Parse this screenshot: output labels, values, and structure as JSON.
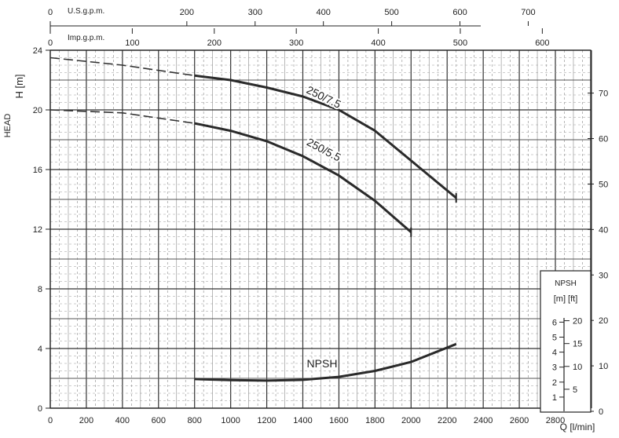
{
  "chart_data": {
    "type": "line",
    "title": "",
    "ylabel": "HEAD",
    "ylabel_unit": "H [m]",
    "xlabel": "Q [l/min]",
    "xlim": [
      0,
      3000
    ],
    "ylim": [
      0,
      24
    ],
    "grid": true,
    "x_ticks": [
      0,
      200,
      400,
      600,
      800,
      1000,
      1200,
      1400,
      1600,
      1800,
      2000,
      2200,
      2400,
      2600,
      2800
    ],
    "y_ticks": [
      0,
      4,
      8,
      12,
      16,
      20,
      24
    ],
    "right_axis": {
      "unit": "ft",
      "ticks": [
        0,
        10,
        20,
        30,
        40,
        50,
        60,
        70
      ]
    },
    "top_axes": [
      {
        "label": "U.S.g.p.m.",
        "ticks": [
          0,
          200,
          300,
          400,
          500,
          600,
          700
        ],
        "lpm_per_unit": 3.785
      },
      {
        "label": "Imp.g.p.m.",
        "ticks": [
          0,
          100,
          200,
          300,
          400,
          500,
          600
        ],
        "lpm_per_unit": 4.546
      }
    ],
    "series": [
      {
        "name": "250/7.5",
        "dashed": [
          [
            0,
            23.5
          ],
          [
            400,
            23.0
          ],
          [
            800,
            22.3
          ]
        ],
        "solid": [
          [
            800,
            22.3
          ],
          [
            1000,
            22.0
          ],
          [
            1200,
            21.5
          ],
          [
            1400,
            20.9
          ],
          [
            1600,
            20.0
          ],
          [
            1800,
            18.6
          ],
          [
            2000,
            16.6
          ],
          [
            2250,
            14.1
          ]
        ]
      },
      {
        "name": "250/5.5",
        "dashed": [
          [
            0,
            20.0
          ],
          [
            400,
            19.8
          ],
          [
            800,
            19.1
          ]
        ],
        "solid": [
          [
            800,
            19.1
          ],
          [
            1000,
            18.6
          ],
          [
            1200,
            17.9
          ],
          [
            1400,
            16.9
          ],
          [
            1600,
            15.6
          ],
          [
            1800,
            13.9
          ],
          [
            2000,
            11.8
          ]
        ]
      },
      {
        "name": "NPSH",
        "solid": [
          [
            800,
            1.95
          ],
          [
            1000,
            1.88
          ],
          [
            1200,
            1.85
          ],
          [
            1400,
            1.9
          ],
          [
            1600,
            2.1
          ],
          [
            1800,
            2.5
          ],
          [
            2000,
            3.1
          ],
          [
            2250,
            4.3
          ]
        ]
      }
    ],
    "npsh_scale": {
      "title": "NPSH",
      "units": "[m]  [ft]",
      "m_ticks": [
        1,
        2,
        3,
        4,
        5,
        6
      ],
      "ft_ticks": [
        5,
        10,
        15,
        20
      ]
    }
  }
}
